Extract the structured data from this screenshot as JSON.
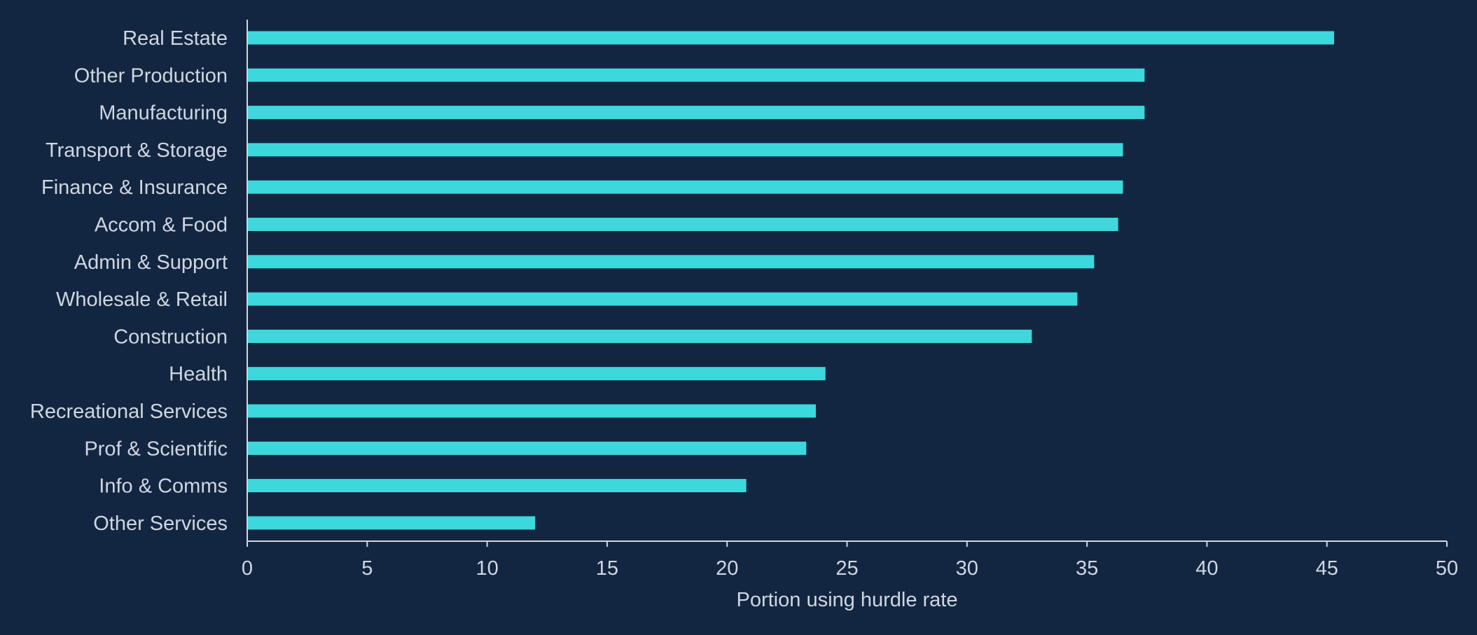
{
  "colors": {
    "background": "#132641",
    "bar": "#3cd8dc",
    "text": "#cfd6e0",
    "axis": "#cfd6e0"
  },
  "chart_data": {
    "type": "bar",
    "orientation": "horizontal",
    "categories": [
      "Real Estate",
      "Other Production",
      "Manufacturing",
      "Transport & Storage",
      "Finance & Insurance",
      "Accom & Food",
      "Admin & Support",
      "Wholesale & Retail",
      "Construction",
      "Health",
      "Recreational Services",
      "Prof & Scientific",
      "Info & Comms",
      "Other Services"
    ],
    "values": [
      45.3,
      37.4,
      37.4,
      36.5,
      36.5,
      36.3,
      35.3,
      34.6,
      32.7,
      24.1,
      23.7,
      23.3,
      20.8,
      12.0
    ],
    "title": "",
    "xlabel": "Portion using hurdle rate",
    "ylabel": "",
    "xlim": [
      0,
      50
    ],
    "xticks": [
      0,
      5,
      10,
      15,
      20,
      25,
      30,
      35,
      40,
      45,
      50
    ],
    "grid": false,
    "legend": "none"
  }
}
